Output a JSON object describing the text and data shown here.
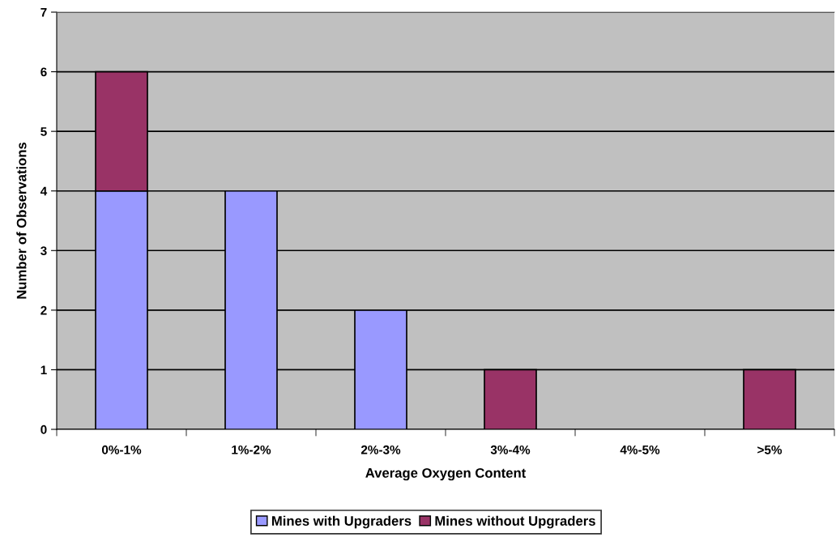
{
  "chart_data": {
    "type": "bar",
    "stacked": true,
    "xlabel": "Average Oxygen Content",
    "ylabel": "Number of Observations",
    "categories": [
      "0%-1%",
      "1%-2%",
      "2%-3%",
      "3%-4%",
      "4%-5%",
      ">5%"
    ],
    "series": [
      {
        "name": "Mines with Upgraders",
        "color": "#9999ff",
        "values": [
          4,
          4,
          2,
          0,
          0,
          0
        ]
      },
      {
        "name": "Mines without Upgraders",
        "color": "#993366",
        "values": [
          2,
          0,
          0,
          1,
          0,
          1
        ]
      }
    ],
    "ylim": [
      0,
      7
    ],
    "yticks": [
      0,
      1,
      2,
      3,
      4,
      5,
      6,
      7
    ],
    "grid": "y",
    "legend": "bottom"
  }
}
